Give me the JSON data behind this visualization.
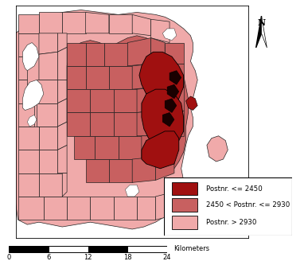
{
  "legend_labels": [
    "Postnr. <= 2450",
    "2450 < Postnr. <= 2930",
    "Postnr. > 2930"
  ],
  "legend_colors": [
    "#A01010",
    "#C86060",
    "#F0AAAA"
  ],
  "dark_color": "#1A0000",
  "border_color": "#222222",
  "water_color": "#FFFFFF",
  "background_color": "#FFFFFF",
  "scalebar_ticks": [
    0,
    6,
    12,
    18,
    24
  ],
  "scalebar_label": "Kilometers",
  "figure_width": 3.82,
  "figure_height": 3.33,
  "dpi": 100
}
